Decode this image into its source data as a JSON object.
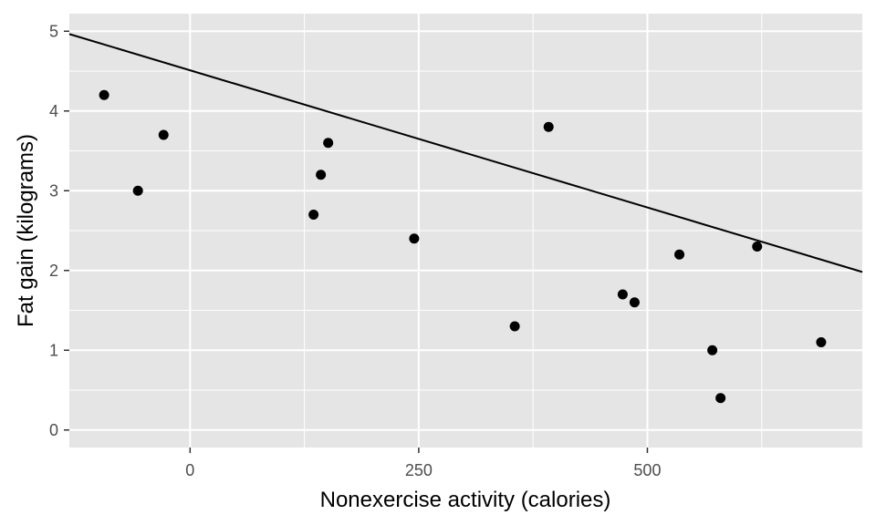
{
  "chart_data": {
    "type": "scatter",
    "xlabel": "Nonexercise activity (calories)",
    "ylabel": "Fat gain (kilograms)",
    "xlim": [
      -132,
      735
    ],
    "ylim": [
      -0.22,
      5.22
    ],
    "x_ticks": [
      0,
      250,
      500
    ],
    "y_ticks": [
      0,
      1,
      2,
      3,
      4,
      5
    ],
    "x_minor_ticks": [
      125,
      375,
      625
    ],
    "y_minor_ticks": [
      0.5,
      1.5,
      2.5,
      3.5,
      4.5
    ],
    "grid": true,
    "points": [
      {
        "x": -94,
        "y": 4.2
      },
      {
        "x": -57,
        "y": 3.0
      },
      {
        "x": -29,
        "y": 3.7
      },
      {
        "x": 135,
        "y": 2.7
      },
      {
        "x": 143,
        "y": 3.2
      },
      {
        "x": 151,
        "y": 3.6
      },
      {
        "x": 245,
        "y": 2.4
      },
      {
        "x": 355,
        "y": 1.3
      },
      {
        "x": 392,
        "y": 3.8
      },
      {
        "x": 473,
        "y": 1.7
      },
      {
        "x": 486,
        "y": 1.6
      },
      {
        "x": 535,
        "y": 2.2
      },
      {
        "x": 571,
        "y": 1.0
      },
      {
        "x": 580,
        "y": 0.4
      },
      {
        "x": 620,
        "y": 2.3
      },
      {
        "x": 690,
        "y": 1.1
      }
    ],
    "fit_line": {
      "intercept": 4.51,
      "slope": -0.00344
    },
    "colors": {
      "panel": "#e5e5e5",
      "grid": "#ffffff",
      "points": "#000000",
      "line": "#000000",
      "tick_text": "#4d4d4d",
      "tick_mark": "#333333"
    }
  }
}
